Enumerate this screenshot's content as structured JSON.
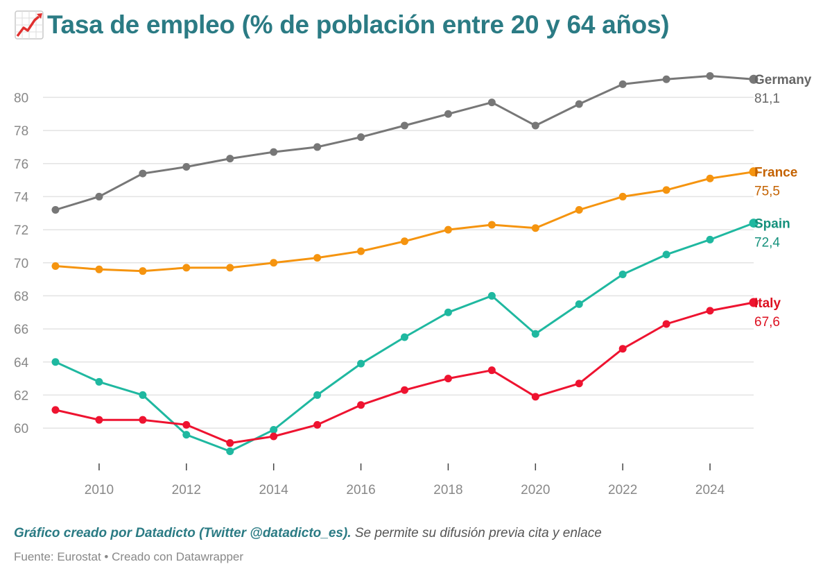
{
  "header": {
    "icon": "chart-increasing-icon",
    "title": "Tasa de empleo (% de población entre 20 y 64 años)"
  },
  "footer": {
    "credit_strong": "Gráfico creado por Datadicto (Twitter @datadicto_es).",
    "credit_rest": " Se permite su difusión previa cita y enlace",
    "source": "Fuente: Eurostat • Creado con Datawrapper"
  },
  "chart_data": {
    "type": "line",
    "title": "Tasa de empleo (% de población entre 20 y 64 años)",
    "x": [
      2009,
      2010,
      2011,
      2012,
      2013,
      2014,
      2015,
      2016,
      2017,
      2018,
      2019,
      2020,
      2021,
      2022,
      2023,
      2024,
      2025
    ],
    "x_ticks": [
      2010,
      2012,
      2014,
      2016,
      2018,
      2020,
      2022,
      2024
    ],
    "y_ticks": [
      60,
      62,
      64,
      66,
      68,
      70,
      72,
      74,
      76,
      78,
      80
    ],
    "ylim": [
      58.2,
      82.2
    ],
    "grid": true,
    "legend": "inline labels at line ends (right)",
    "series": [
      {
        "name": "Germany",
        "end_label": "81,1",
        "color": "#777777",
        "label_color": "#666666",
        "values": [
          73.2,
          74.0,
          75.4,
          75.8,
          76.3,
          76.7,
          77.0,
          77.6,
          78.3,
          79.0,
          79.7,
          78.3,
          79.6,
          80.8,
          81.1,
          81.3,
          81.1
        ]
      },
      {
        "name": "France",
        "end_label": "75,5",
        "color": "#f5940f",
        "label_color": "#c46200",
        "values": [
          69.8,
          69.6,
          69.5,
          69.7,
          69.7,
          70.0,
          70.3,
          70.7,
          71.3,
          72.0,
          72.3,
          72.1,
          73.2,
          74.0,
          74.4,
          75.1,
          75.5
        ]
      },
      {
        "name": "Spain",
        "end_label": "72,4",
        "color": "#1fb8a0",
        "label_color": "#15917c",
        "values": [
          64.0,
          62.8,
          62.0,
          59.6,
          58.6,
          59.9,
          62.0,
          63.9,
          65.5,
          67.0,
          68.0,
          65.7,
          67.5,
          69.3,
          70.5,
          71.4,
          72.4
        ]
      },
      {
        "name": "Italy",
        "end_label": "67,6",
        "color": "#ee1330",
        "label_color": "#dd1020",
        "values": [
          61.1,
          60.5,
          60.5,
          60.2,
          59.1,
          59.5,
          60.2,
          61.4,
          62.3,
          63.0,
          63.5,
          61.9,
          62.7,
          64.8,
          66.3,
          67.1,
          67.6
        ]
      }
    ]
  }
}
